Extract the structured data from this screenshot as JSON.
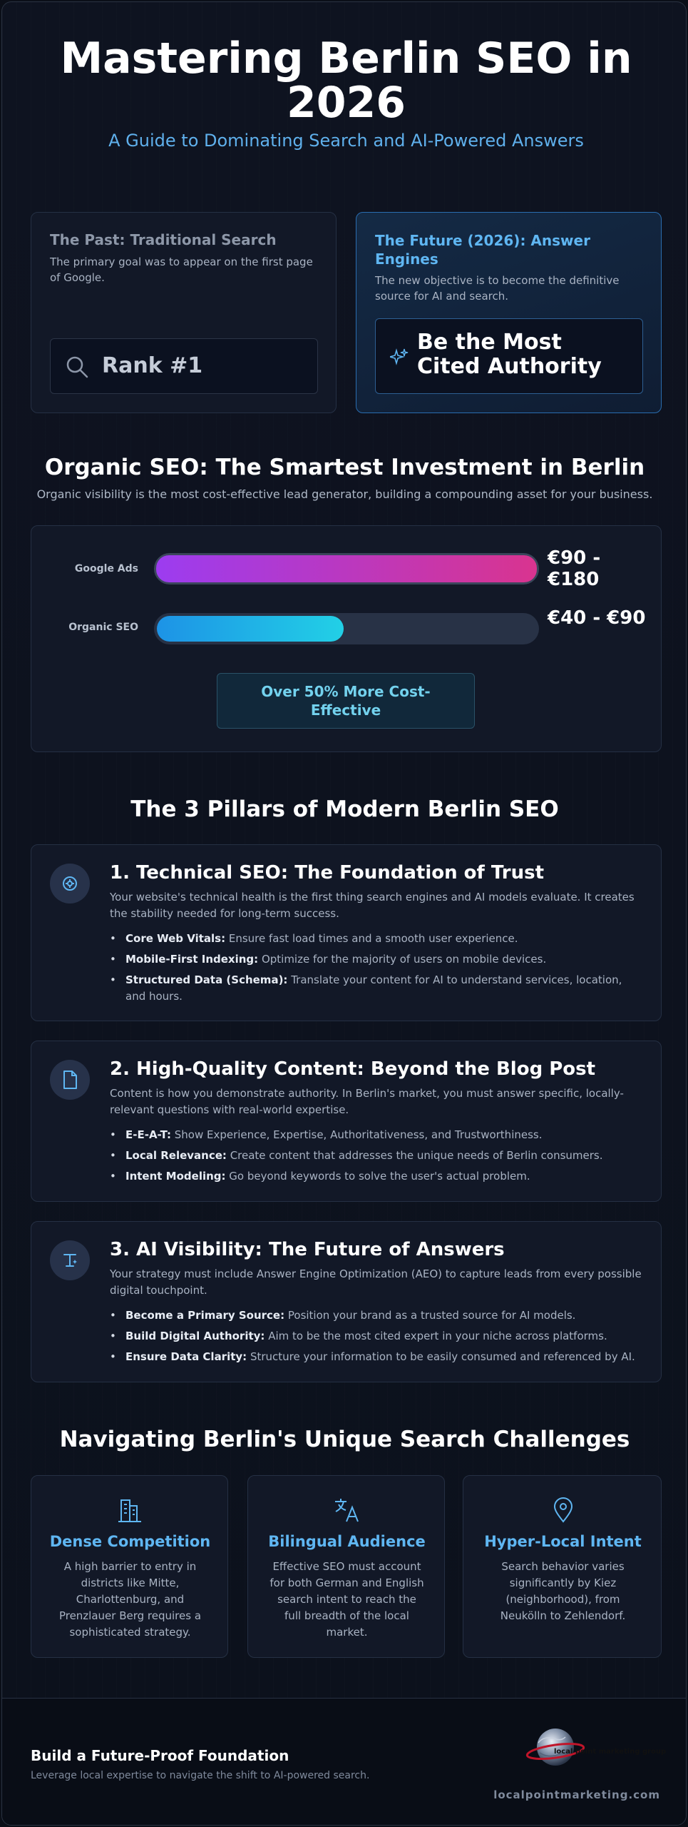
{
  "header": {
    "title": "Mastering Berlin SEO in 2026",
    "subtitle": "A Guide to Dominating Search and AI-Powered Answers"
  },
  "comparison": {
    "past": {
      "title": "The Past: Traditional Search",
      "desc": "The primary goal was to appear on the first page of Google.",
      "box": "Rank #1",
      "icon": "search-icon"
    },
    "future": {
      "title": "The Future (2026): Answer Engines",
      "desc": "The new objective is to become the definitive source for AI and search.",
      "box": "Be the Most Cited Authority",
      "icon": "sparkle-icon"
    }
  },
  "investment": {
    "title": "Organic SEO: The Smartest Investment in Berlin",
    "subtitle": "Organic visibility is the most cost-effective lead generator, building a compounding asset for your business.",
    "bars": [
      {
        "label": "Google Ads",
        "value": "€90 - €180",
        "fill_fraction": 1.0
      },
      {
        "label": "Organic SEO",
        "value": "€40 - €90",
        "fill_fraction": 0.5
      }
    ],
    "callout": "Over 50% More Cost-Effective"
  },
  "pillars": {
    "title": "The 3 Pillars of Modern Berlin SEO",
    "items": [
      {
        "title": "1. Technical SEO: The Foundation of Trust",
        "desc": "Your website's technical health is the first thing search engines and AI models evaluate. It creates the stability needed for long-term success.",
        "icon": "gear-icon",
        "bullets": [
          {
            "bold": "Core Web Vitals:",
            "text": " Ensure fast load times and a smooth user experience."
          },
          {
            "bold": "Mobile-First Indexing:",
            "text": " Optimize for the majority of users on mobile devices."
          },
          {
            "bold": "Structured Data (Schema):",
            "text": " Translate your content for AI to understand services, location, and hours."
          }
        ]
      },
      {
        "title": "2. High-Quality Content: Beyond the Blog Post",
        "desc": "Content is how you demonstrate authority. In Berlin's market, you must answer specific, locally-relevant questions with real-world expertise.",
        "icon": "document-icon",
        "bullets": [
          {
            "bold": "E-E-A-T:",
            "text": " Show Experience, Expertise, Authoritativeness, and Trustworthiness."
          },
          {
            "bold": "Local Relevance:",
            "text": " Create content that addresses the unique needs of Berlin consumers."
          },
          {
            "bold": "Intent Modeling:",
            "text": " Go beyond keywords to solve the user's actual problem."
          }
        ]
      },
      {
        "title": "3. AI Visibility: The Future of Answers",
        "desc": "Your strategy must include Answer Engine Optimization (AEO) to capture leads from every possible digital touchpoint.",
        "icon": "ai-text-icon",
        "bullets": [
          {
            "bold": "Become a Primary Source:",
            "text": " Position your brand as a trusted source for AI models."
          },
          {
            "bold": "Build Digital Authority:",
            "text": " Aim to be the most cited expert in your niche across platforms."
          },
          {
            "bold": "Ensure Data Clarity:",
            "text": " Structure your information to be easily consumed and referenced by AI."
          }
        ]
      }
    ]
  },
  "challenges": {
    "title": "Navigating Berlin's Unique Search Challenges",
    "items": [
      {
        "title": "Dense Competition",
        "desc": "A high barrier to entry in districts like Mitte, Charlottenburg, and Prenzlauer Berg requires a sophisticated strategy.",
        "icon": "buildings-icon"
      },
      {
        "title": "Bilingual Audience",
        "desc": "Effective SEO must account for both German and English search intent to reach the full breadth of the local market.",
        "icon": "translate-icon"
      },
      {
        "title": "Hyper-Local Intent",
        "desc": "Search behavior varies significantly by Kiez (neighborhood), from Neukölln to Zehlendorf.",
        "icon": "map-pin-icon"
      }
    ]
  },
  "footer": {
    "title": "Build a Future-Proof Foundation",
    "subtitle": "Leverage local expertise to navigate the shift to AI-powered search.",
    "url": "localpointmarketing.com",
    "logo_text": "local point marketing group"
  },
  "colors": {
    "accent_blue": "#5fb6f2",
    "ads_gradient": [
      "#9c3cf0",
      "#d9348f"
    ],
    "seo_gradient": [
      "#1d93e6",
      "#22d0e6"
    ],
    "callout_text": "#73d2ee"
  }
}
